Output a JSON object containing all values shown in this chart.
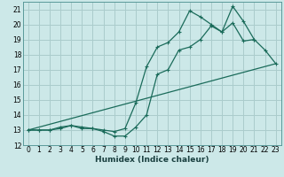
{
  "title": "",
  "xlabel": "Humidex (Indice chaleur)",
  "bg_color": "#cce8e8",
  "grid_color": "#aacccc",
  "line_color": "#1a6b5a",
  "xlim": [
    -0.5,
    23.5
  ],
  "ylim": [
    12,
    21.5
  ],
  "xticks": [
    0,
    1,
    2,
    3,
    4,
    5,
    6,
    7,
    8,
    9,
    10,
    11,
    12,
    13,
    14,
    15,
    16,
    17,
    18,
    19,
    20,
    21,
    22,
    23
  ],
  "yticks": [
    12,
    13,
    14,
    15,
    16,
    17,
    18,
    19,
    20,
    21
  ],
  "line1_x": [
    0,
    1,
    2,
    3,
    4,
    5,
    6,
    7,
    8,
    9,
    10,
    11,
    12,
    13,
    14,
    15,
    16,
    17,
    18,
    19,
    20,
    21,
    22,
    23
  ],
  "line1_y": [
    13.0,
    13.0,
    13.0,
    13.1,
    13.3,
    13.1,
    13.1,
    12.9,
    12.6,
    12.6,
    13.2,
    14.0,
    16.7,
    17.0,
    18.3,
    18.5,
    19.0,
    19.9,
    19.5,
    20.1,
    18.9,
    19.0,
    18.3,
    17.4
  ],
  "line2_x": [
    0,
    1,
    2,
    3,
    4,
    5,
    6,
    7,
    8,
    9,
    10,
    11,
    12,
    13,
    14,
    15,
    16,
    17,
    18,
    19,
    20,
    21
  ],
  "line2_y": [
    13.0,
    13.0,
    13.0,
    13.2,
    13.3,
    13.2,
    13.1,
    13.0,
    12.9,
    13.1,
    14.8,
    17.2,
    18.5,
    18.8,
    19.5,
    20.9,
    20.5,
    20.0,
    19.5,
    21.2,
    20.2,
    19.0
  ],
  "line3_x": [
    0,
    23
  ],
  "line3_y": [
    13.0,
    17.4
  ]
}
